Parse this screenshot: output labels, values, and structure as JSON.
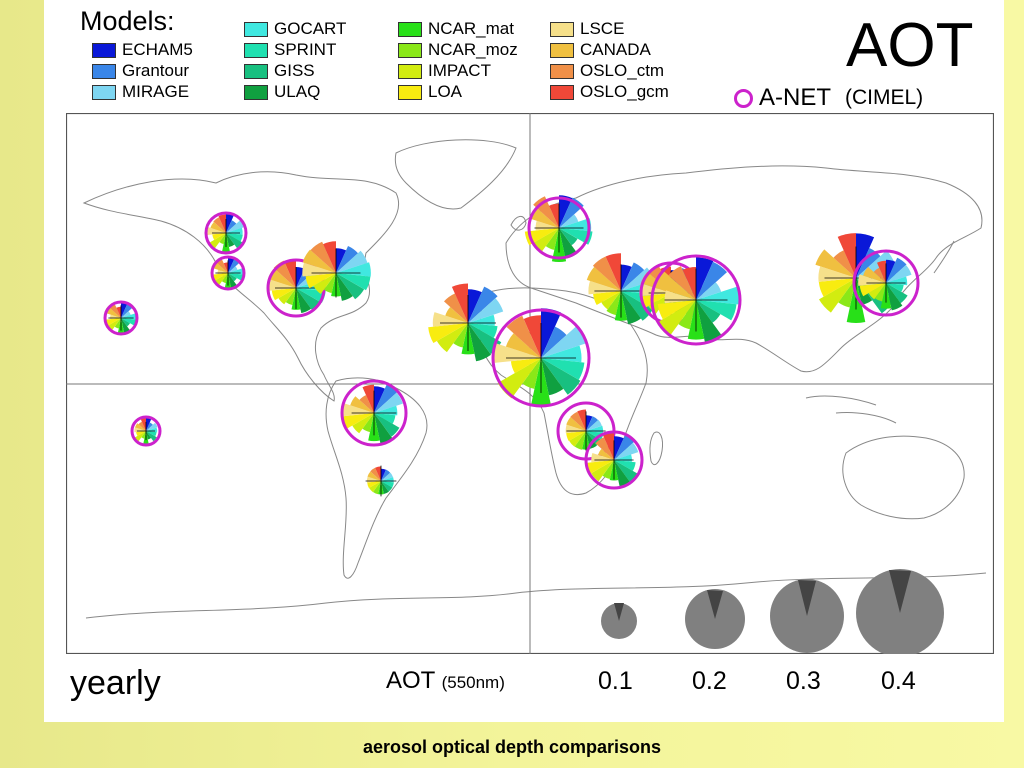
{
  "legend": {
    "title": "Models:",
    "items": [
      {
        "label": "ECHAM5",
        "color": "#0a18d8"
      },
      {
        "label": "Grantour",
        "color": "#3a86e8"
      },
      {
        "label": "MIRAGE",
        "color": "#7ed6f2"
      },
      {
        "label": "GOCART",
        "color": "#40e8e0"
      },
      {
        "label": "SPRINT",
        "color": "#20e0b0"
      },
      {
        "label": "GISS",
        "color": "#18c080"
      },
      {
        "label": "ULAQ",
        "color": "#10a040"
      },
      {
        "label": "NCAR_mat",
        "color": "#28e018"
      },
      {
        "label": "NCAR_moz",
        "color": "#8ae818"
      },
      {
        "label": "IMPACT",
        "color": "#d2ec10"
      },
      {
        "label": "LOA",
        "color": "#f8ec10"
      },
      {
        "label": "LSCE",
        "color": "#f6e08a"
      },
      {
        "label": "CANADA",
        "color": "#f0c040"
      },
      {
        "label": "OSLO_ctm",
        "color": "#f09048"
      },
      {
        "label": "OSLO_gcm",
        "color": "#f04838"
      }
    ]
  },
  "header": {
    "variable": "AOT",
    "observation_label": "A-NET",
    "observation_sublabel": "(CIMEL)",
    "observation_color": "#cc22cc"
  },
  "footer": {
    "period": "yearly",
    "scale_label": "AOT",
    "scale_unit": "(550nm)",
    "scale_values": [
      "0.1",
      "0.2",
      "0.3",
      "0.4"
    ]
  },
  "caption": "aerosol optical depth comparisons"
}
